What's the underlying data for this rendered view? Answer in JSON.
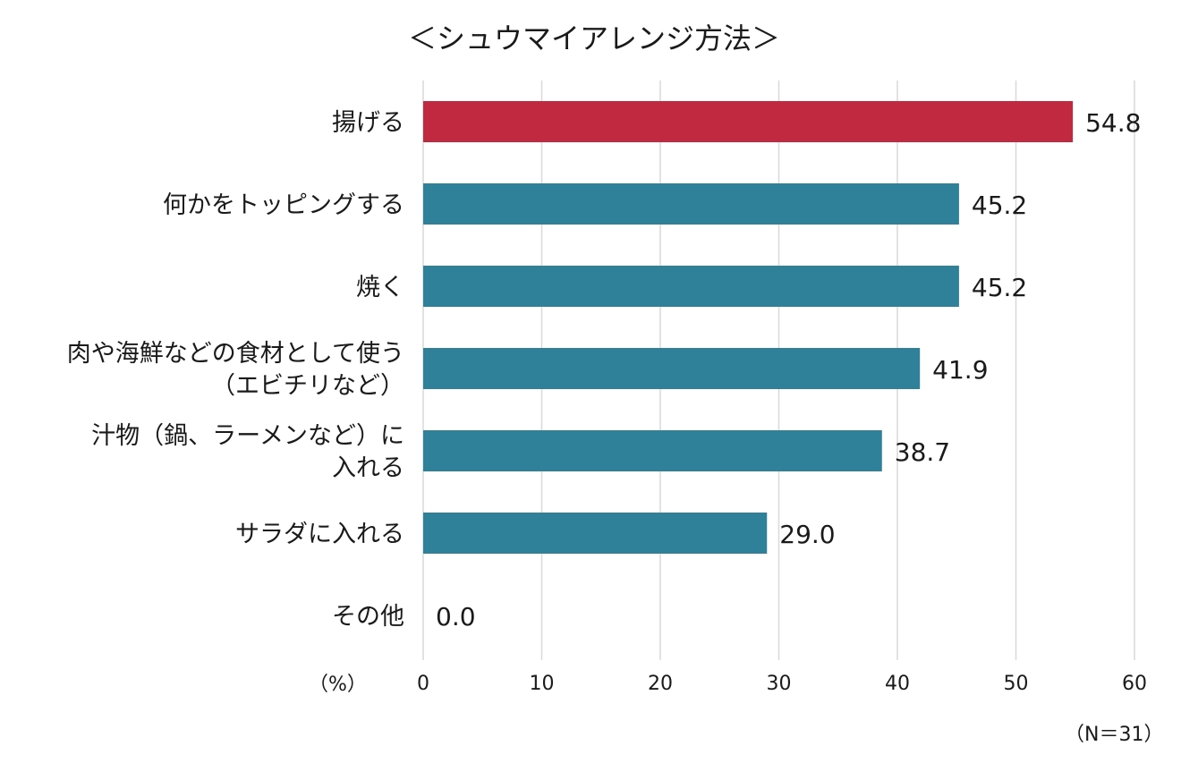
{
  "chart_data": {
    "type": "bar",
    "orientation": "horizontal",
    "title": "＜シュウマイアレンジ方法＞",
    "unit_label": "（%）",
    "note": "（N＝31）",
    "categories": [
      [
        "揚げる"
      ],
      [
        "何かをトッピングする"
      ],
      [
        "焼く"
      ],
      [
        "肉や海鮮などの食材として使う",
        "（エビチリなど）"
      ],
      [
        "汁物（鍋、ラーメンなど）に",
        "入れる"
      ],
      [
        "サラダに入れる"
      ],
      [
        "その他"
      ]
    ],
    "values": [
      54.8,
      45.2,
      45.2,
      41.9,
      38.7,
      29.0,
      0.0
    ],
    "value_labels": [
      "54.8",
      "45.2",
      "45.2",
      "41.9",
      "38.7",
      "29.0",
      "0.0"
    ],
    "xlim": [
      0,
      60
    ],
    "ticks": [
      "0",
      "10",
      "20",
      "30",
      "40",
      "50",
      "60"
    ],
    "grid": true,
    "colors": {
      "highlight": "#C0293F",
      "default": "#2E8199",
      "grid": "#D9D9D9"
    }
  }
}
